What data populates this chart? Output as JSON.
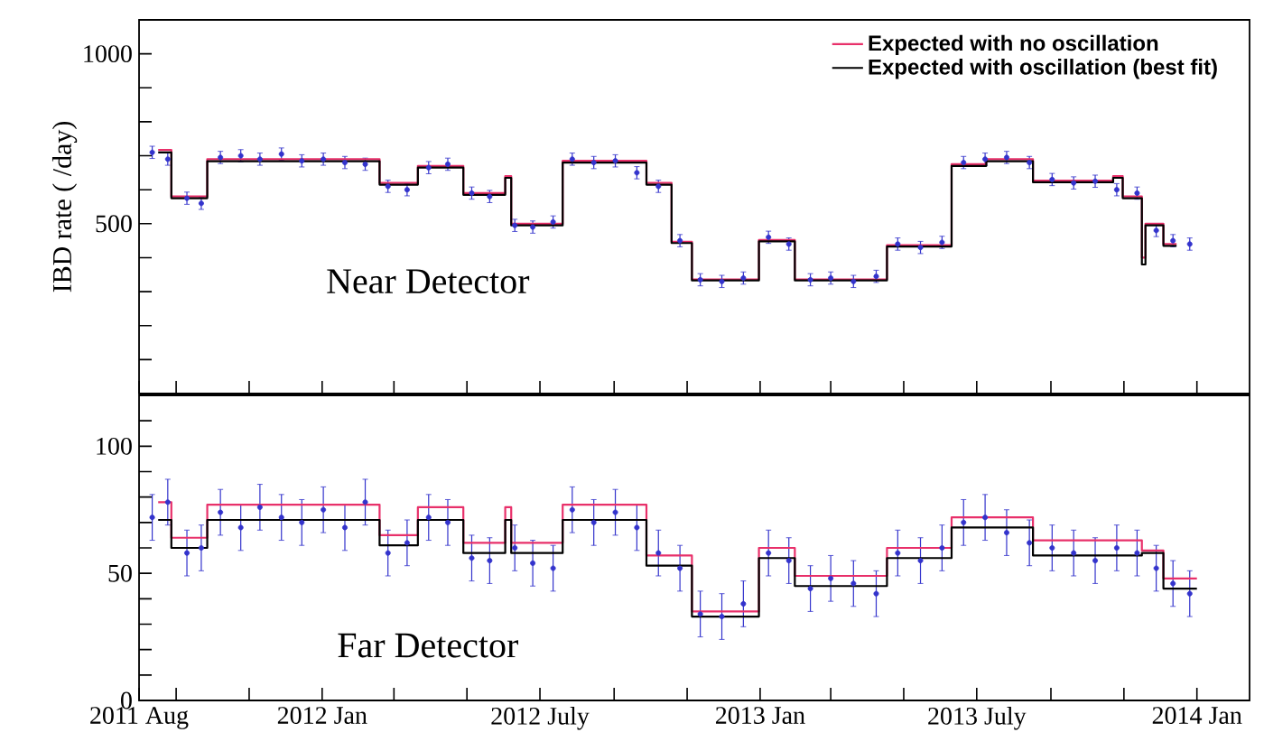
{
  "chart_data": [
    {
      "type": "scatter",
      "ylabel": "IBD rate ( /day)",
      "annotations": [
        "Near Detector"
      ],
      "xlim": [
        "2011-08-01",
        "2014-02-14"
      ],
      "ylim": [
        0,
        1100
      ],
      "tick_labels": "y",
      "legend": "top right",
      "xticks": [
        {
          "value": "2011-08-01",
          "label": null
        },
        {
          "value": "2011-09-01",
          "label": null
        },
        {
          "value": "2011-11-01",
          "label": null
        },
        {
          "value": "2012-01-01",
          "label": null
        },
        {
          "value": "2012-03-01",
          "label": null
        },
        {
          "value": "2012-05-01",
          "label": null
        },
        {
          "value": "2012-07-01",
          "label": null
        },
        {
          "value": "2012-09-01",
          "label": null
        },
        {
          "value": "2012-11-01",
          "label": null
        },
        {
          "value": "2013-01-01",
          "label": null
        },
        {
          "value": "2013-03-01",
          "label": null
        },
        {
          "value": "2013-05-01",
          "label": null
        },
        {
          "value": "2013-07-01",
          "label": null
        },
        {
          "value": "2013-09-01",
          "label": null
        },
        {
          "value": "2013-11-01",
          "label": null
        },
        {
          "value": "2014-01-01",
          "label": null
        }
      ],
      "yticks": [
        {
          "value": 100,
          "label": null
        },
        {
          "value": 200,
          "label": null
        },
        {
          "value": 300,
          "label": null
        },
        {
          "value": 400,
          "label": null
        },
        500,
        {
          "value": 600,
          "label": null
        },
        {
          "value": 700,
          "label": null
        },
        {
          "value": 800,
          "label": null
        },
        {
          "value": 900,
          "label": null
        },
        1000
      ],
      "series": [
        {
          "color": "#3333cc",
          "marker": "circle",
          "x": [
            "2011-08-12",
            "2011-08-25",
            "2011-09-10",
            "2011-09-22",
            "2011-10-08",
            "2011-10-25",
            "2011-11-10",
            "2011-11-28",
            "2011-12-15",
            "2012-01-02",
            "2012-01-20",
            "2012-02-06",
            "2012-02-25",
            "2012-03-12",
            "2012-03-30",
            "2012-04-15",
            "2012-05-05",
            "2012-05-20",
            "2012-06-10",
            "2012-06-25",
            "2012-07-12",
            "2012-07-28",
            "2012-08-15",
            "2012-09-02",
            "2012-09-20",
            "2012-10-08",
            "2012-10-26",
            "2012-11-12",
            "2012-11-30",
            "2012-12-18",
            "2013-01-08",
            "2013-01-25",
            "2013-02-12",
            "2013-03-01",
            "2013-03-20",
            "2013-04-08",
            "2013-04-26",
            "2013-05-15",
            "2013-06-02",
            "2013-06-20",
            "2013-07-08",
            "2013-07-26",
            "2013-08-14",
            "2013-09-02",
            "2013-09-20",
            "2013-10-08",
            "2013-10-26",
            "2013-11-12",
            "2013-11-28",
            "2013-12-12",
            "2013-12-26"
          ],
          "values": [
            710,
            690,
            575,
            560,
            695,
            700,
            690,
            705,
            685,
            690,
            680,
            675,
            610,
            600,
            665,
            675,
            590,
            580,
            495,
            490,
            505,
            690,
            680,
            685,
            650,
            610,
            450,
            335,
            330,
            340,
            460,
            440,
            335,
            340,
            330,
            345,
            440,
            430,
            445,
            680,
            690,
            695,
            680,
            630,
            620,
            625,
            600,
            590,
            480,
            450,
            440
          ],
          "errors": [
            18,
            18,
            18,
            18,
            18,
            18,
            18,
            18,
            18,
            18,
            18,
            18,
            18,
            18,
            18,
            18,
            18,
            18,
            18,
            18,
            18,
            18,
            18,
            18,
            18,
            18,
            18,
            18,
            18,
            18,
            18,
            18,
            18,
            18,
            18,
            18,
            18,
            18,
            18,
            18,
            18,
            18,
            18,
            18,
            18,
            18,
            18,
            18,
            18,
            18,
            18
          ]
        },
        {
          "type": "step",
          "name": "Expected with no oscillation",
          "color": "#e8306a",
          "x": [
            "2011-08-17",
            "2011-08-28",
            "2011-09-27",
            "2012-02-18",
            "2012-03-21",
            "2012-04-28",
            "2012-06-02",
            "2012-06-07",
            "2012-07-20",
            "2012-09-28",
            "2012-10-19",
            "2012-11-05",
            "2012-12-31",
            "2013-01-30",
            "2013-04-17",
            "2013-06-10",
            "2013-07-09",
            "2013-08-17",
            "2013-10-23",
            "2013-10-31",
            "2013-11-16",
            "2013-11-19",
            "2013-12-04",
            "2013-12-15"
          ],
          "values": [
            717,
            580,
            690,
            620,
            670,
            590,
            640,
            500,
            685,
            620,
            447,
            336,
            452,
            336,
            437,
            675,
            690,
            627,
            640,
            580,
            400,
            500,
            440,
            440
          ]
        },
        {
          "type": "step",
          "name": "Expected with oscillation (best fit)",
          "color": "#000000",
          "x": [
            "2011-08-17",
            "2011-08-28",
            "2011-09-27",
            "2012-02-18",
            "2012-03-21",
            "2012-04-28",
            "2012-06-02",
            "2012-06-07",
            "2012-07-20",
            "2012-09-28",
            "2012-10-19",
            "2012-11-05",
            "2012-12-31",
            "2013-01-30",
            "2013-04-17",
            "2013-06-10",
            "2013-07-09",
            "2013-08-17",
            "2013-10-23",
            "2013-10-31",
            "2013-11-16",
            "2013-11-19",
            "2013-12-04",
            "2013-12-15"
          ],
          "values": [
            710,
            575,
            684,
            615,
            665,
            585,
            635,
            495,
            680,
            615,
            443,
            333,
            448,
            333,
            433,
            670,
            684,
            622,
            635,
            575,
            380,
            495,
            435,
            435
          ]
        }
      ]
    },
    {
      "type": "scatter",
      "annotations": [
        "Far Detector"
      ],
      "xlim": [
        "2011-08-01",
        "2014-02-14"
      ],
      "ylim": [
        0,
        120
      ],
      "xticks": [
        {
          "value": "2011-08-01",
          "label": "2011 Aug"
        },
        {
          "value": "2011-09-01",
          "label": null
        },
        {
          "value": "2011-11-01",
          "label": null
        },
        {
          "value": "2012-01-01",
          "label": "2012 Jan"
        },
        {
          "value": "2012-03-01",
          "label": null
        },
        {
          "value": "2012-05-01",
          "label": null
        },
        {
          "value": "2012-07-01",
          "label": "2012 July"
        },
        {
          "value": "2012-09-01",
          "label": null
        },
        {
          "value": "2012-11-01",
          "label": null
        },
        {
          "value": "2013-01-01",
          "label": "2013 Jan"
        },
        {
          "value": "2013-03-01",
          "label": null
        },
        {
          "value": "2013-05-01",
          "label": null
        },
        {
          "value": "2013-07-01",
          "label": "2013 July"
        },
        {
          "value": "2013-09-01",
          "label": null
        },
        {
          "value": "2013-11-01",
          "label": null
        },
        {
          "value": "2014-01-01",
          "label": "2014 Jan"
        }
      ],
      "yticks": [
        0,
        {
          "value": 10,
          "label": null
        },
        {
          "value": 20,
          "label": null
        },
        {
          "value": 30,
          "label": null
        },
        {
          "value": 40,
          "label": null
        },
        50,
        {
          "value": 60,
          "label": null
        },
        {
          "value": 70,
          "label": null
        },
        {
          "value": 80,
          "label": null
        },
        {
          "value": 90,
          "label": null
        },
        100,
        {
          "value": 110,
          "label": null
        }
      ],
      "series": [
        {
          "color": "#3333cc",
          "marker": "circle",
          "x": [
            "2011-08-12",
            "2011-08-25",
            "2011-09-10",
            "2011-09-22",
            "2011-10-08",
            "2011-10-25",
            "2011-11-10",
            "2011-11-28",
            "2011-12-15",
            "2012-01-02",
            "2012-01-20",
            "2012-02-06",
            "2012-02-25",
            "2012-03-12",
            "2012-03-30",
            "2012-04-15",
            "2012-05-05",
            "2012-05-20",
            "2012-06-10",
            "2012-06-25",
            "2012-07-12",
            "2012-07-28",
            "2012-08-15",
            "2012-09-02",
            "2012-09-20",
            "2012-10-08",
            "2012-10-26",
            "2012-11-12",
            "2012-11-30",
            "2012-12-18",
            "2013-01-08",
            "2013-01-25",
            "2013-02-12",
            "2013-03-01",
            "2013-03-20",
            "2013-04-08",
            "2013-04-26",
            "2013-05-15",
            "2013-06-02",
            "2013-06-20",
            "2013-07-08",
            "2013-07-26",
            "2013-08-14",
            "2013-09-02",
            "2013-09-20",
            "2013-10-08",
            "2013-10-26",
            "2013-11-12",
            "2013-11-28",
            "2013-12-12",
            "2013-12-26"
          ],
          "values": [
            72,
            78,
            58,
            60,
            74,
            68,
            76,
            72,
            70,
            75,
            68,
            78,
            58,
            62,
            72,
            70,
            56,
            55,
            60,
            54,
            52,
            75,
            70,
            74,
            68,
            58,
            52,
            34,
            33,
            38,
            58,
            55,
            44,
            48,
            46,
            42,
            58,
            55,
            60,
            70,
            72,
            66,
            62,
            60,
            58,
            55,
            60,
            58,
            52,
            46,
            42
          ],
          "errors": [
            9,
            9,
            9,
            9,
            9,
            9,
            9,
            9,
            9,
            9,
            9,
            9,
            9,
            9,
            9,
            9,
            9,
            9,
            9,
            9,
            9,
            9,
            9,
            9,
            9,
            9,
            9,
            9,
            9,
            9,
            9,
            9,
            9,
            9,
            9,
            9,
            9,
            9,
            9,
            9,
            9,
            9,
            9,
            9,
            9,
            9,
            9,
            9,
            9,
            9,
            9
          ]
        },
        {
          "type": "step",
          "color": "#e8306a",
          "x": [
            "2011-08-17",
            "2011-08-28",
            "2011-09-27",
            "2012-02-18",
            "2012-03-21",
            "2012-04-28",
            "2012-06-02",
            "2012-06-07",
            "2012-07-20",
            "2012-09-28",
            "2012-11-05",
            "2012-12-31",
            "2013-01-30",
            "2013-04-17",
            "2013-06-10",
            "2013-08-17",
            "2013-11-16",
            "2013-12-04",
            "2014-01-01"
          ],
          "values": [
            78,
            64,
            77,
            65,
            76,
            62,
            76,
            62,
            77,
            57,
            35,
            60,
            49,
            60,
            72,
            63,
            59,
            48,
            48
          ]
        },
        {
          "type": "step",
          "color": "#000000",
          "x": [
            "2011-08-17",
            "2011-08-28",
            "2011-09-27",
            "2012-02-18",
            "2012-03-21",
            "2012-04-28",
            "2012-06-02",
            "2012-06-07",
            "2012-07-20",
            "2012-09-28",
            "2012-11-05",
            "2012-12-31",
            "2013-01-30",
            "2013-04-17",
            "2013-06-10",
            "2013-08-17",
            "2013-11-16",
            "2013-12-04",
            "2014-01-01"
          ],
          "values": [
            71,
            60,
            71,
            61,
            71,
            58,
            71,
            58,
            71,
            53,
            33,
            56,
            45,
            56,
            68,
            57,
            58,
            44,
            44
          ]
        }
      ]
    }
  ]
}
